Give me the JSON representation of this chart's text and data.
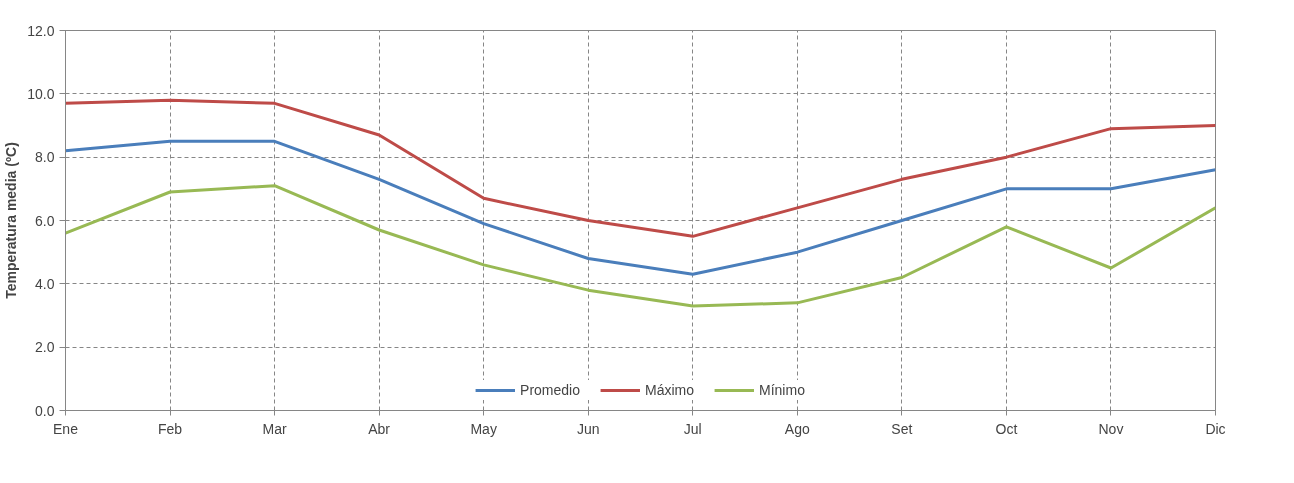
{
  "chart_data": {
    "type": "line",
    "ylabel": "Temperatura media (ºC)",
    "categories": [
      "Ene",
      "Feb",
      "Mar",
      "Abr",
      "May",
      "Jun",
      "Jul",
      "Ago",
      "Set",
      "Oct",
      "Nov",
      "Dic"
    ],
    "series": [
      {
        "name": "Promedio",
        "color": "#4a7ebb",
        "values": [
          8.2,
          8.5,
          8.5,
          7.3,
          5.9,
          4.8,
          4.3,
          5.0,
          6.0,
          7.0,
          7.0,
          7.6
        ]
      },
      {
        "name": "Máximo",
        "color": "#be4b48",
        "values": [
          9.7,
          9.8,
          9.7,
          8.7,
          6.7,
          6.0,
          5.5,
          6.4,
          7.3,
          8.0,
          8.9,
          9.0
        ]
      },
      {
        "name": "Mínimo",
        "color": "#98b954",
        "values": [
          5.6,
          6.9,
          7.1,
          5.7,
          4.6,
          3.8,
          3.3,
          3.4,
          4.2,
          5.8,
          4.5,
          6.4
        ]
      }
    ],
    "ylim": [
      0,
      12
    ],
    "yticks": [
      {
        "value": 0,
        "label": "0.0"
      },
      {
        "value": 2,
        "label": "2.0"
      },
      {
        "value": 4,
        "label": "4.0"
      },
      {
        "value": 6,
        "label": "6.0"
      },
      {
        "value": 8,
        "label": "8.0"
      },
      {
        "value": 10,
        "label": "10.0"
      },
      {
        "value": 12,
        "label": "12.0"
      }
    ],
    "grid": true,
    "legend": "bottom",
    "marker": "none",
    "line_style": "solid"
  }
}
